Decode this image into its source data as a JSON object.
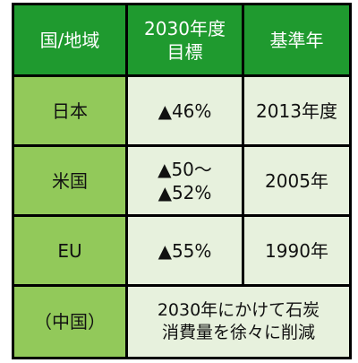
{
  "header": {
    "region": "国/地域",
    "target_line1": "2030年度",
    "target_line2": "目標",
    "base_year": "基準年"
  },
  "rows": [
    {
      "region": "日本",
      "target": "▲46%",
      "base_year": "2013年度"
    },
    {
      "region": "米国",
      "target_line1": "▲50～",
      "target_line2": "▲52%",
      "base_year": "2005年"
    },
    {
      "region": "EU",
      "target": "▲55%",
      "base_year": "1990年"
    },
    {
      "region": "（中国）",
      "note_line1": "2030年にかけて石炭",
      "note_line2": "消費量を徐々に削減"
    }
  ],
  "colors": {
    "header_bg": "#1f9a2f",
    "label_bg": "#92c95a",
    "cell_bg": "#e7f1dd",
    "border": "#000000"
  }
}
